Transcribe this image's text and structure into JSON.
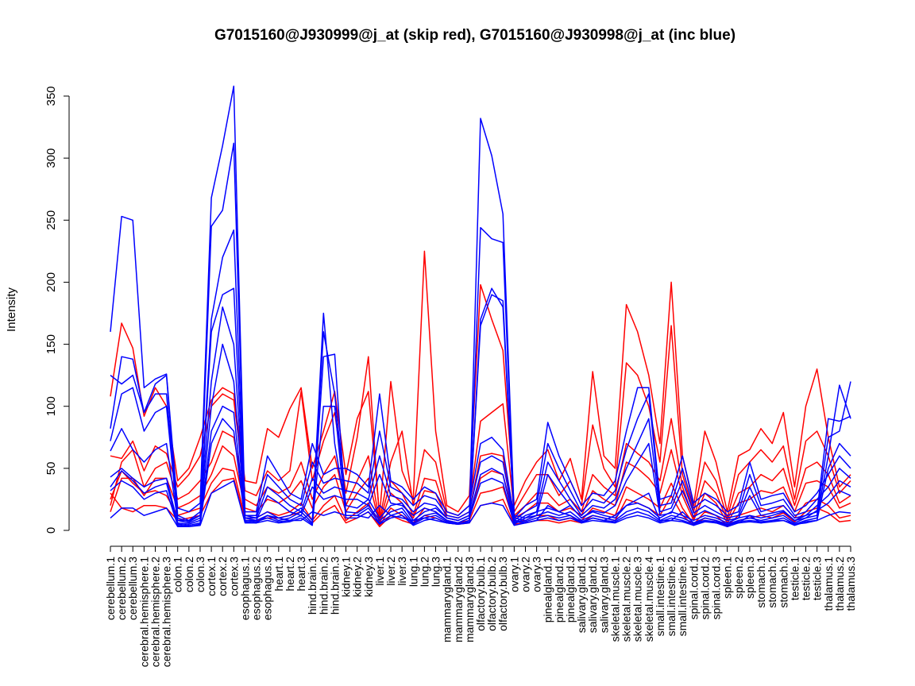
{
  "chart_data": {
    "type": "line",
    "title": "G7015160@J930999@j_at (skip red), G7015160@J930998@j_at (inc blue)",
    "xlabel": "",
    "ylabel": "Intensity",
    "ylim": [
      0,
      350
    ],
    "yticks": [
      0,
      50,
      100,
      150,
      200,
      250,
      300,
      350
    ],
    "grid": false,
    "legend": "none",
    "categories": [
      "cerebellum.1",
      "cerebellum.2",
      "cerebellum.3",
      "cerebral.hemisphere.1",
      "cerebral.hemisphere.2",
      "cerebral.hemisphere.3",
      "colon.1",
      "colon.2",
      "colon.3",
      "cortex.1",
      "cortex.2",
      "cortex.3",
      "esophagus.1",
      "esophagus.2",
      "esophagus.3",
      "heart.1",
      "heart.2",
      "heart.3",
      "hind.brain.1",
      "hind.brain.2",
      "hind.brain.3",
      "kidney.1",
      "kidney.2",
      "kidney.3",
      "liver.1",
      "liver.2",
      "liver.3",
      "lung.1",
      "lung.2",
      "lung.3",
      "mammarygland.1",
      "mammarygland.2",
      "mammarygland.3",
      "olfactory.bulb.1",
      "olfactory.bulb.2",
      "olfactory.bulb.3",
      "ovary.1",
      "ovary.2",
      "ovary.3",
      "pinealgland.1",
      "pinealgland.2",
      "pinealgland.3",
      "salivary.gland.1",
      "salivary.gland.2",
      "salivary.gland.3",
      "skeletal.muscle.1",
      "skeletal.muscle.2",
      "skeletal.muscle.3",
      "skeletal.muscle.4",
      "small.intestine.1",
      "small.intestine.2",
      "small.intestine.3",
      "spinal.cord.1",
      "spinal.cord.2",
      "spinal.cord.3",
      "spleen.1",
      "spleen.2",
      "spleen.3",
      "stomach.1",
      "stomach.2",
      "stomach.3",
      "testicle.1",
      "testicle.2",
      "testicle.3",
      "thalamus.1",
      "thalamus.2",
      "thalamus.3"
    ],
    "series": [
      {
        "color": "#ff0000",
        "values": [
          108,
          167,
          147,
          92,
          115,
          100,
          40,
          50,
          75,
          105,
          115,
          110,
          40,
          38,
          82,
          75,
          98,
          115,
          50,
          80,
          112,
          45,
          90,
          112,
          12,
          120,
          48,
          25,
          225,
          80,
          20,
          15,
          28,
          198,
          170,
          145,
          20,
          40,
          55,
          65,
          40,
          58,
          25,
          128,
          60,
          50,
          182,
          160,
          125,
          70,
          200,
          60,
          20,
          80,
          55,
          15,
          60,
          65,
          82,
          70,
          95,
          35,
          100,
          130,
          75,
          35,
          45
        ]
      },
      {
        "color": "#ff0000",
        "values": [
          60,
          58,
          72,
          48,
          68,
          62,
          35,
          45,
          60,
          100,
          110,
          105,
          32,
          28,
          48,
          40,
          48,
          112,
          40,
          72,
          95,
          30,
          75,
          140,
          8,
          55,
          80,
          20,
          65,
          55,
          15,
          12,
          20,
          88,
          95,
          102,
          15,
          30,
          45,
          45,
          28,
          40,
          20,
          85,
          50,
          35,
          135,
          125,
          100,
          55,
          165,
          45,
          15,
          55,
          40,
          10,
          45,
          55,
          65,
          55,
          68,
          25,
          72,
          80,
          60,
          30,
          40
        ]
      },
      {
        "color": "#ff0000",
        "values": [
          20,
          55,
          65,
          35,
          50,
          55,
          25,
          30,
          40,
          55,
          80,
          75,
          25,
          20,
          35,
          30,
          35,
          55,
          25,
          45,
          60,
          20,
          40,
          60,
          6,
          40,
          30,
          12,
          42,
          40,
          12,
          10,
          15,
          60,
          62,
          60,
          12,
          20,
          30,
          30,
          20,
          25,
          15,
          45,
          35,
          28,
          70,
          62,
          55,
          40,
          90,
          35,
          10,
          40,
          30,
          8,
          30,
          35,
          45,
          40,
          50,
          20,
          50,
          55,
          45,
          22,
          28
        ]
      },
      {
        "color": "#ff0000",
        "values": [
          15,
          42,
          42,
          28,
          42,
          42,
          18,
          22,
          28,
          45,
          68,
          60,
          18,
          15,
          25,
          22,
          28,
          40,
          18,
          35,
          45,
          15,
          30,
          42,
          5,
          30,
          22,
          10,
          32,
          30,
          10,
          8,
          12,
          42,
          48,
          45,
          10,
          15,
          22,
          22,
          15,
          18,
          12,
          32,
          25,
          20,
          55,
          50,
          42,
          30,
          65,
          28,
          8,
          30,
          22,
          6,
          22,
          25,
          32,
          30,
          35,
          15,
          38,
          40,
          35,
          18,
          22
        ]
      },
      {
        "color": "#ff0000",
        "values": [
          25,
          48,
          38,
          30,
          32,
          28,
          12,
          15,
          18,
          38,
          50,
          48,
          10,
          10,
          15,
          12,
          15,
          22,
          8,
          20,
          28,
          8,
          15,
          22,
          4,
          18,
          12,
          6,
          18,
          15,
          8,
          6,
          8,
          30,
          32,
          35,
          6,
          8,
          12,
          12,
          8,
          10,
          8,
          18,
          15,
          12,
          35,
          30,
          25,
          18,
          38,
          18,
          5,
          15,
          12,
          4,
          12,
          15,
          18,
          15,
          20,
          10,
          22,
          25,
          20,
          10,
          12
        ]
      },
      {
        "color": "#ff0000",
        "values": [
          30,
          18,
          15,
          20,
          20,
          18,
          8,
          10,
          12,
          30,
          40,
          42,
          8,
          8,
          10,
          10,
          12,
          15,
          6,
          15,
          20,
          6,
          10,
          15,
          3,
          12,
          8,
          5,
          12,
          10,
          6,
          5,
          6,
          20,
          22,
          25,
          5,
          6,
          8,
          8,
          6,
          8,
          6,
          12,
          10,
          8,
          25,
          22,
          18,
          12,
          28,
          12,
          4,
          10,
          8,
          3,
          8,
          10,
          12,
          10,
          14,
          7,
          15,
          18,
          14,
          7,
          8
        ]
      },
      {
        "color": "#0000ff",
        "values": [
          160,
          253,
          250,
          115,
          122,
          126,
          18,
          15,
          22,
          268,
          310,
          358,
          12,
          10,
          15,
          10,
          12,
          18,
          8,
          160,
          110,
          20,
          18,
          25,
          10,
          20,
          22,
          8,
          15,
          18,
          10,
          8,
          12,
          332,
          302,
          255,
          12,
          10,
          15,
          18,
          15,
          20,
          10,
          15,
          12,
          10,
          20,
          22,
          18,
          10,
          15,
          12,
          8,
          12,
          10,
          6,
          10,
          12,
          10,
          12,
          15,
          8,
          12,
          15,
          90,
          88,
          92
        ]
      },
      {
        "color": "#0000ff",
        "values": [
          125,
          118,
          125,
          95,
          118,
          125,
          12,
          8,
          15,
          245,
          258,
          312,
          10,
          8,
          12,
          8,
          10,
          15,
          6,
          175,
          70,
          15,
          14,
          20,
          8,
          15,
          18,
          6,
          12,
          14,
          8,
          6,
          10,
          244,
          235,
          232,
          10,
          8,
          12,
          15,
          12,
          15,
          8,
          12,
          10,
          8,
          15,
          18,
          15,
          8,
          12,
          10,
          6,
          10,
          8,
          5,
          8,
          10,
          8,
          10,
          12,
          6,
          10,
          12,
          75,
          80,
          120
        ]
      },
      {
        "color": "#0000ff",
        "values": [
          82,
          140,
          138,
          95,
          110,
          110,
          10,
          7,
          12,
          170,
          220,
          242,
          8,
          7,
          10,
          7,
          8,
          12,
          5,
          140,
          142,
          12,
          12,
          18,
          6,
          12,
          15,
          5,
          10,
          12,
          7,
          5,
          8,
          165,
          190,
          185,
          8,
          7,
          10,
          12,
          10,
          12,
          7,
          10,
          8,
          7,
          12,
          15,
          12,
          7,
          10,
          8,
          5,
          8,
          7,
          4,
          7,
          8,
          7,
          8,
          10,
          5,
          8,
          10,
          60,
          117,
          90
        ]
      },
      {
        "color": "#0000ff",
        "values": [
          72,
          110,
          115,
          80,
          95,
          100,
          8,
          6,
          10,
          160,
          190,
          195,
          7,
          6,
          8,
          6,
          7,
          10,
          4,
          100,
          100,
          10,
          10,
          15,
          5,
          10,
          12,
          4,
          8,
          10,
          6,
          5,
          7,
          170,
          195,
          180,
          7,
          6,
          8,
          10,
          8,
          10,
          6,
          8,
          7,
          6,
          10,
          12,
          10,
          6,
          8,
          7,
          4,
          7,
          6,
          3,
          6,
          7,
          6,
          7,
          8,
          4,
          7,
          8,
          50,
          70,
          60
        ]
      },
      {
        "color": "#0000ff",
        "values": [
          64,
          82,
          65,
          55,
          65,
          70,
          8,
          8,
          12,
          120,
          180,
          150,
          15,
          15,
          60,
          45,
          30,
          25,
          70,
          45,
          50,
          50,
          45,
          35,
          110,
          40,
          35,
          25,
          35,
          30,
          15,
          12,
          20,
          70,
          75,
          65,
          10,
          20,
          25,
          87,
          60,
          40,
          20,
          30,
          28,
          40,
          80,
          115,
          115,
          25,
          28,
          60,
          22,
          30,
          25,
          15,
          20,
          55,
          25,
          28,
          30,
          15,
          20,
          30,
          45,
          60,
          50
        ]
      },
      {
        "color": "#0000ff",
        "values": [
          43,
          50,
          42,
          35,
          40,
          42,
          6,
          5,
          8,
          100,
          150,
          120,
          12,
          12,
          45,
          35,
          25,
          20,
          55,
          38,
          42,
          40,
          38,
          30,
          80,
          35,
          30,
          20,
          28,
          25,
          12,
          10,
          15,
          55,
          60,
          55,
          8,
          15,
          20,
          70,
          50,
          32,
          15,
          25,
          22,
          32,
          65,
          90,
          110,
          20,
          22,
          50,
          18,
          25,
          20,
          12,
          15,
          45,
          20,
          22,
          25,
          12,
          15,
          25,
          35,
          50,
          42
        ]
      },
      {
        "color": "#0000ff",
        "values": [
          35,
          48,
          40,
          30,
          35,
          38,
          5,
          4,
          6,
          80,
          100,
          95,
          10,
          10,
          35,
          28,
          20,
          15,
          42,
          30,
          35,
          32,
          30,
          25,
          60,
          28,
          25,
          15,
          22,
          20,
          10,
          8,
          12,
          45,
          50,
          45,
          6,
          12,
          15,
          55,
          40,
          25,
          12,
          20,
          18,
          25,
          50,
          70,
          90,
          15,
          18,
          40,
          14,
          20,
          15,
          10,
          12,
          35,
          15,
          18,
          20,
          10,
          12,
          20,
          28,
          40,
          35
        ]
      },
      {
        "color": "#0000ff",
        "values": [
          32,
          40,
          35,
          25,
          30,
          32,
          4,
          3,
          5,
          70,
          90,
          80,
          8,
          8,
          28,
          22,
          15,
          12,
          35,
          25,
          28,
          25,
          25,
          20,
          45,
          22,
          20,
          12,
          18,
          15,
          8,
          6,
          10,
          38,
          42,
          38,
          5,
          10,
          12,
          45,
          32,
          20,
          10,
          16,
          14,
          20,
          40,
          55,
          70,
          12,
          14,
          32,
          11,
          16,
          12,
          8,
          10,
          28,
          12,
          14,
          16,
          8,
          10,
          16,
          22,
          32,
          28
        ]
      },
      {
        "color": "#0000ff",
        "values": [
          10,
          18,
          18,
          12,
          15,
          18,
          3,
          3,
          4,
          30,
          35,
          40,
          6,
          6,
          12,
          10,
          8,
          8,
          15,
          12,
          15,
          12,
          12,
          10,
          20,
          12,
          10,
          8,
          10,
          8,
          6,
          5,
          6,
          20,
          22,
          20,
          4,
          6,
          8,
          20,
          15,
          12,
          6,
          10,
          8,
          12,
          20,
          25,
          30,
          8,
          8,
          15,
          6,
          8,
          6,
          5,
          6,
          12,
          6,
          8,
          8,
          5,
          6,
          8,
          12,
          15,
          14
        ]
      }
    ]
  }
}
